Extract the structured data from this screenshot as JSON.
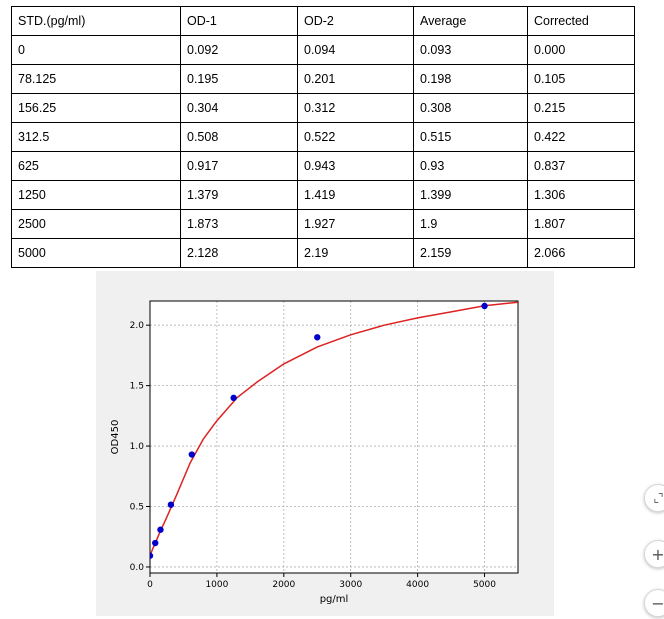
{
  "table": {
    "headers": [
      "STD.(pg/ml)",
      "OD-1",
      "OD-2",
      "Average",
      "Corrected"
    ],
    "rows": [
      [
        "0",
        "0.092",
        "0.094",
        "0.093",
        "0.000"
      ],
      [
        "78.125",
        "0.195",
        "0.201",
        "0.198",
        "0.105"
      ],
      [
        "156.25",
        "0.304",
        "0.312",
        "0.308",
        "0.215"
      ],
      [
        "312.5",
        "0.508",
        "0.522",
        "0.515",
        "0.422"
      ],
      [
        "625",
        "0.917",
        "0.943",
        "0.93",
        "0.837"
      ],
      [
        "1250",
        "1.379",
        "1.419",
        "1.399",
        "1.306"
      ],
      [
        "2500",
        "1.873",
        "1.927",
        "1.9",
        "1.807"
      ],
      [
        "5000",
        "2.128",
        "2.19",
        "2.159",
        "2.066"
      ]
    ]
  },
  "chart_data": {
    "type": "scatter",
    "title": "",
    "xlabel": "pg/ml",
    "ylabel": "OD450",
    "xlim": [
      0,
      5500
    ],
    "ylim": [
      -0.05,
      2.2
    ],
    "xticks": [
      0,
      1000,
      2000,
      3000,
      4000,
      5000
    ],
    "yticks": [
      0.0,
      0.5,
      1.0,
      1.5,
      2.0
    ],
    "grid": true,
    "points": {
      "x": [
        0,
        78.125,
        156.25,
        312.5,
        625,
        1250,
        2500,
        5000
      ],
      "y": [
        0.093,
        0.198,
        0.308,
        0.515,
        0.93,
        1.399,
        1.9,
        2.159
      ],
      "color": "#0000cc"
    },
    "fit_curve": {
      "color": "#dd2222",
      "x": [
        0,
        40,
        80,
        150,
        250,
        400,
        600,
        800,
        1000,
        1300,
        1600,
        2000,
        2500,
        3000,
        3500,
        4000,
        4500,
        5000,
        5500
      ],
      "y": [
        0.09,
        0.15,
        0.2,
        0.29,
        0.41,
        0.6,
        0.86,
        1.06,
        1.21,
        1.4,
        1.53,
        1.68,
        1.82,
        1.92,
        2.0,
        2.06,
        2.11,
        2.16,
        2.19
      ]
    }
  },
  "controls": {
    "fit_icon": "fit-to-screen-icon",
    "zoom_in_glyph": "+",
    "zoom_out_glyph": "−"
  }
}
